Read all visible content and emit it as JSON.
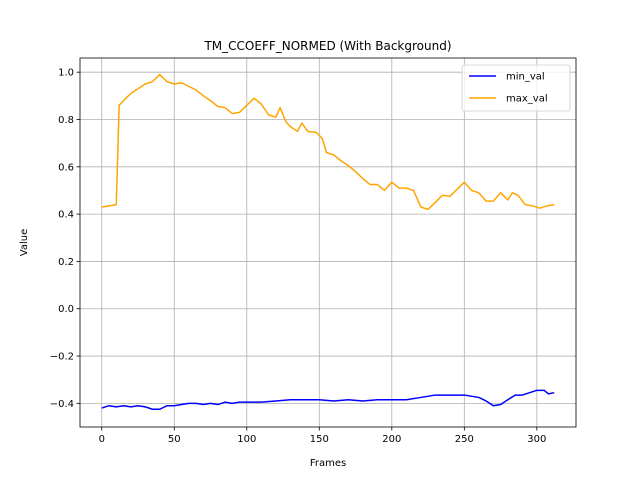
{
  "chart_data": {
    "type": "line",
    "title": "TM_CCOEFF_NORMED (With Background)",
    "xlabel": "Frames",
    "ylabel": "Value",
    "xlim": [
      -15,
      327
    ],
    "ylim": [
      -0.5,
      1.06
    ],
    "xticks": [
      0,
      50,
      100,
      150,
      200,
      250,
      300
    ],
    "yticks": [
      -0.4,
      -0.2,
      0.0,
      0.2,
      0.4,
      0.6,
      0.8,
      1.0
    ],
    "ytick_labels": [
      "−0.4",
      "−0.2",
      "0.0",
      "0.2",
      "0.4",
      "0.6",
      "0.8",
      "1.0"
    ],
    "xtick_labels": [
      "0",
      "50",
      "100",
      "150",
      "200",
      "250",
      "300"
    ],
    "grid": true,
    "legend_position": "top-right",
    "series": [
      {
        "name": "min_val",
        "color": "#0000ff",
        "points": [
          [
            0,
            -0.42
          ],
          [
            5,
            -0.41
          ],
          [
            10,
            -0.415
          ],
          [
            15,
            -0.41
          ],
          [
            20,
            -0.415
          ],
          [
            25,
            -0.41
          ],
          [
            30,
            -0.415
          ],
          [
            35,
            -0.425
          ],
          [
            40,
            -0.425
          ],
          [
            45,
            -0.41
          ],
          [
            50,
            -0.41
          ],
          [
            55,
            -0.405
          ],
          [
            60,
            -0.4
          ],
          [
            65,
            -0.4
          ],
          [
            70,
            -0.405
          ],
          [
            75,
            -0.4
          ],
          [
            80,
            -0.405
          ],
          [
            85,
            -0.395
          ],
          [
            90,
            -0.4
          ],
          [
            95,
            -0.395
          ],
          [
            100,
            -0.395
          ],
          [
            110,
            -0.395
          ],
          [
            120,
            -0.39
          ],
          [
            130,
            -0.385
          ],
          [
            140,
            -0.385
          ],
          [
            150,
            -0.385
          ],
          [
            160,
            -0.39
          ],
          [
            170,
            -0.385
          ],
          [
            180,
            -0.39
          ],
          [
            190,
            -0.385
          ],
          [
            200,
            -0.385
          ],
          [
            210,
            -0.385
          ],
          [
            220,
            -0.375
          ],
          [
            230,
            -0.365
          ],
          [
            240,
            -0.365
          ],
          [
            250,
            -0.365
          ],
          [
            260,
            -0.375
          ],
          [
            265,
            -0.39
          ],
          [
            270,
            -0.41
          ],
          [
            275,
            -0.405
          ],
          [
            280,
            -0.385
          ],
          [
            285,
            -0.365
          ],
          [
            290,
            -0.365
          ],
          [
            295,
            -0.355
          ],
          [
            300,
            -0.345
          ],
          [
            305,
            -0.345
          ],
          [
            308,
            -0.36
          ],
          [
            312,
            -0.355
          ]
        ]
      },
      {
        "name": "max_val",
        "color": "#ffa500",
        "points": [
          [
            0,
            0.43
          ],
          [
            5,
            0.435
          ],
          [
            10,
            0.44
          ],
          [
            12,
            0.86
          ],
          [
            15,
            0.88
          ],
          [
            20,
            0.91
          ],
          [
            25,
            0.93
          ],
          [
            30,
            0.95
          ],
          [
            35,
            0.96
          ],
          [
            40,
            0.99
          ],
          [
            45,
            0.96
          ],
          [
            50,
            0.95
          ],
          [
            55,
            0.955
          ],
          [
            60,
            0.94
          ],
          [
            65,
            0.925
          ],
          [
            70,
            0.9
          ],
          [
            75,
            0.88
          ],
          [
            80,
            0.855
          ],
          [
            85,
            0.85
          ],
          [
            90,
            0.825
          ],
          [
            95,
            0.83
          ],
          [
            100,
            0.86
          ],
          [
            105,
            0.89
          ],
          [
            110,
            0.865
          ],
          [
            115,
            0.82
          ],
          [
            120,
            0.81
          ],
          [
            123,
            0.85
          ],
          [
            127,
            0.79
          ],
          [
            130,
            0.77
          ],
          [
            135,
            0.75
          ],
          [
            138,
            0.785
          ],
          [
            142,
            0.75
          ],
          [
            148,
            0.745
          ],
          [
            152,
            0.72
          ],
          [
            155,
            0.66
          ],
          [
            160,
            0.65
          ],
          [
            165,
            0.625
          ],
          [
            170,
            0.605
          ],
          [
            175,
            0.58
          ],
          [
            180,
            0.55
          ],
          [
            185,
            0.525
          ],
          [
            190,
            0.525
          ],
          [
            195,
            0.5
          ],
          [
            200,
            0.535
          ],
          [
            205,
            0.51
          ],
          [
            210,
            0.51
          ],
          [
            215,
            0.5
          ],
          [
            220,
            0.43
          ],
          [
            225,
            0.42
          ],
          [
            230,
            0.45
          ],
          [
            235,
            0.48
          ],
          [
            240,
            0.475
          ],
          [
            245,
            0.505
          ],
          [
            250,
            0.535
          ],
          [
            255,
            0.5
          ],
          [
            260,
            0.49
          ],
          [
            265,
            0.455
          ],
          [
            270,
            0.455
          ],
          [
            275,
            0.49
          ],
          [
            280,
            0.46
          ],
          [
            283,
            0.49
          ],
          [
            287,
            0.48
          ],
          [
            292,
            0.44
          ],
          [
            297,
            0.435
          ],
          [
            302,
            0.425
          ],
          [
            307,
            0.435
          ],
          [
            312,
            0.44
          ]
        ]
      }
    ]
  }
}
